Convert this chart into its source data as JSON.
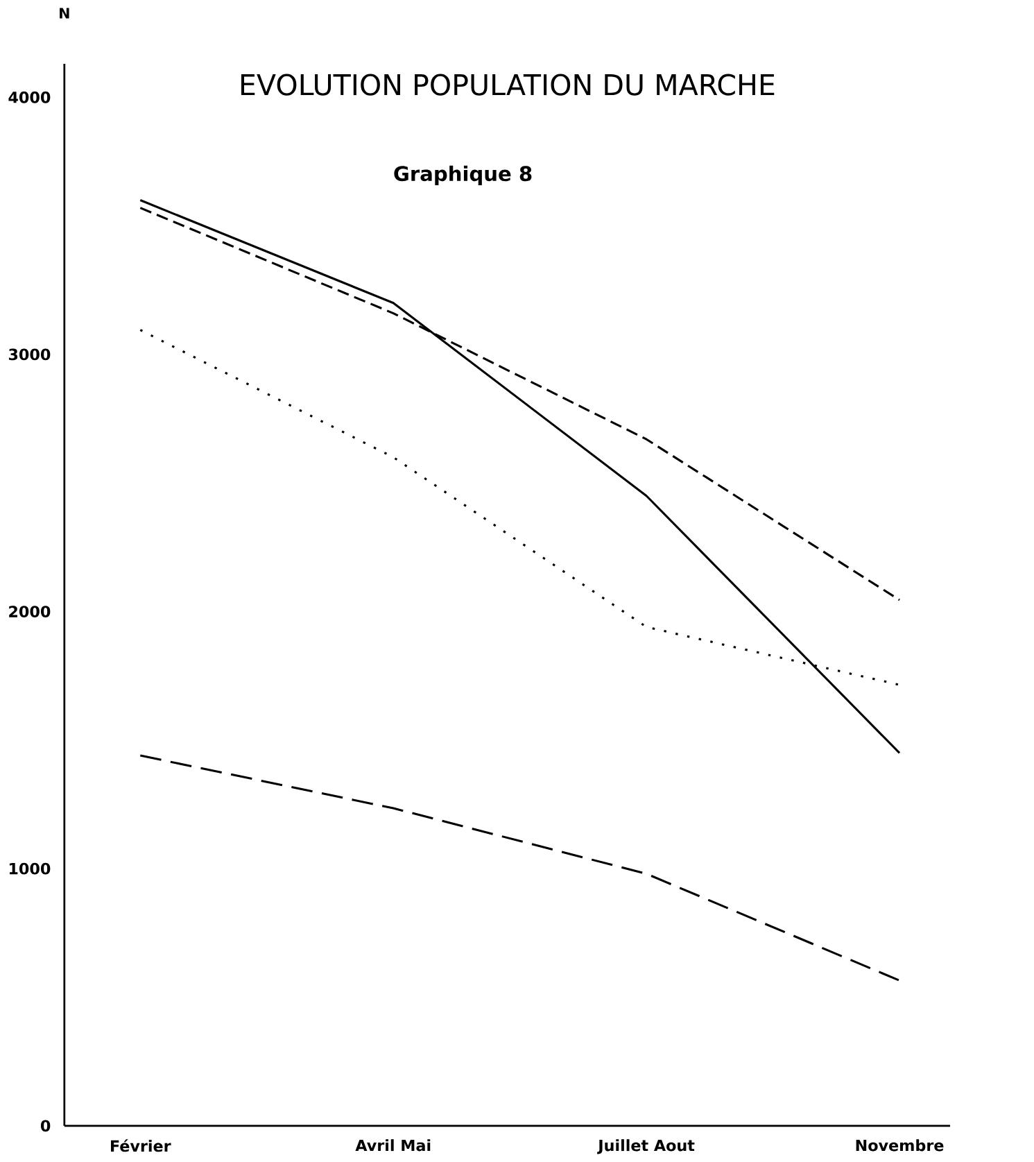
{
  "chart_data": {
    "type": "line",
    "title": "EVOLUTION POPULATION DU MARCHE",
    "subtitle": "Graphique 8",
    "ylabel": "N",
    "categories": [
      "Février",
      "Avril Mai",
      "Juillet Aout",
      "Novembre"
    ],
    "series": [
      {
        "color": "#000000",
        "line_style": "solid",
        "values": [
          3600,
          3200,
          2450,
          1450
        ]
      },
      {
        "color": "#000000",
        "line_style": "dashed",
        "values": [
          3570,
          3160,
          2670,
          2045
        ]
      },
      {
        "color": "#000000",
        "line_style": "dotted",
        "values": [
          3095,
          2600,
          1940,
          1715
        ]
      },
      {
        "color": "#000000",
        "line_style": "longdashed",
        "values": [
          1440,
          1235,
          980,
          565
        ]
      }
    ],
    "ylim": [
      0,
      4130
    ],
    "yticks": [
      0,
      1000,
      2000,
      3000,
      4000
    ],
    "grid": false,
    "marker": "none"
  }
}
